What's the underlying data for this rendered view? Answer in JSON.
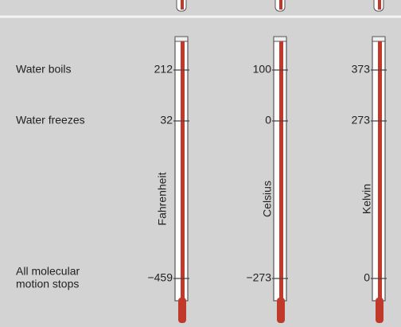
{
  "rows": [
    {
      "label": [
        "Water boils"
      ]
    },
    {
      "label": [
        "Water freezes"
      ]
    },
    {
      "label": [
        "All molecular",
        "motion stops"
      ]
    }
  ],
  "scales": [
    {
      "name": "Fahrenheit",
      "readings": [
        "212",
        "32",
        "−459"
      ]
    },
    {
      "name": "Celsius",
      "readings": [
        "100",
        "0",
        "−273"
      ]
    },
    {
      "name": "Kelvin",
      "readings": [
        "373",
        "273",
        "0"
      ]
    }
  ]
}
